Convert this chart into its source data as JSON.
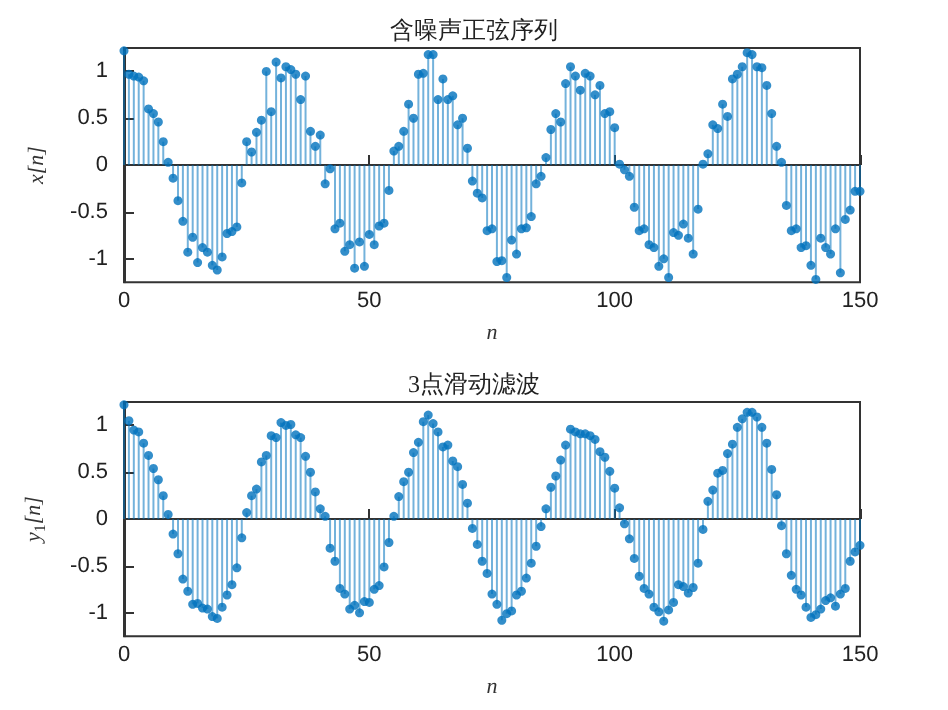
{
  "chart_data": [
    {
      "type": "lollipop",
      "title": "含噪声正弦序列",
      "xlabel": "n",
      "ylabel": "x[n]",
      "x": [
        0,
        1,
        2,
        3,
        4,
        5,
        6,
        7,
        8,
        9,
        10,
        11,
        12,
        13,
        14,
        15,
        16,
        17,
        18,
        19,
        20,
        21,
        22,
        23,
        24,
        25,
        26,
        27,
        28,
        29,
        30,
        31,
        32,
        33,
        34,
        35,
        36,
        37,
        38,
        39,
        40,
        41,
        42,
        43,
        44,
        45,
        46,
        47,
        48,
        49,
        50,
        51,
        52,
        53,
        54,
        55,
        56,
        57,
        58,
        59,
        60,
        61,
        62,
        63,
        64,
        65,
        66,
        67,
        68,
        69,
        70,
        71,
        72,
        73,
        74,
        75,
        76,
        77,
        78,
        79,
        80,
        81,
        82,
        83,
        84,
        85,
        86,
        87,
        88,
        89,
        90,
        91,
        92,
        93,
        94,
        95,
        96,
        97,
        98,
        99,
        100,
        101,
        102,
        103,
        104,
        105,
        106,
        107,
        108,
        109,
        110,
        111,
        112,
        113,
        114,
        115,
        116,
        117,
        118,
        119,
        120,
        121,
        122,
        123,
        124,
        125,
        126,
        127,
        128,
        129,
        130,
        131,
        132,
        133,
        134,
        135,
        136,
        137,
        138,
        139,
        140,
        141,
        142,
        143,
        144,
        145,
        146,
        147,
        148,
        149,
        150
      ],
      "series": [
        {
          "color": "#0072bd",
          "values": [
            1.22,
            0.97,
            0.95,
            0.94,
            0.9,
            0.6,
            0.55,
            0.46,
            0.25,
            0.03,
            -0.14,
            -0.38,
            -0.6,
            -0.93,
            -0.77,
            -1.04,
            -0.88,
            -0.93,
            -1.07,
            -1.12,
            -0.98,
            -0.73,
            -0.71,
            -0.66,
            -0.19,
            0.25,
            0.14,
            0.35,
            0.48,
            1.0,
            0.57,
            1.1,
            0.93,
            1.05,
            1.02,
            0.97,
            0.7,
            0.95,
            0.36,
            0.2,
            0.32,
            -0.2,
            -0.04,
            -0.68,
            -0.62,
            -0.92,
            -0.85,
            -1.1,
            -0.82,
            -1.08,
            -0.74,
            -0.85,
            -0.65,
            -0.62,
            -0.27,
            0.15,
            0.2,
            0.36,
            0.65,
            0.5,
            0.97,
            0.98,
            1.18,
            1.18,
            0.7,
            0.92,
            0.7,
            0.74,
            0.43,
            0.5,
            0.18,
            -0.17,
            -0.3,
            -0.35,
            -0.7,
            -0.68,
            -1.03,
            -1.02,
            -1.2,
            -0.8,
            -0.95,
            -0.68,
            -0.67,
            -0.55,
            -0.2,
            -0.12,
            0.08,
            0.38,
            0.55,
            0.46,
            0.87,
            1.05,
            0.95,
            0.8,
            0.98,
            0.95,
            0.75,
            0.85,
            0.55,
            0.57,
            0.4,
            0.01,
            -0.05,
            -0.12,
            -0.45,
            -0.7,
            -0.68,
            -0.85,
            -0.88,
            -1.08,
            -1.0,
            -1.2,
            -0.72,
            -0.75,
            -0.63,
            -0.78,
            -0.95,
            -0.47,
            0.01,
            0.12,
            0.43,
            0.39,
            0.65,
            0.52,
            0.92,
            0.97,
            1.05,
            1.2,
            1.18,
            1.05,
            1.04,
            0.85,
            0.55,
            0.2,
            0.03,
            -0.43,
            -0.7,
            -0.68,
            -0.88,
            -0.86,
            -1.07,
            -1.22,
            -0.78,
            -0.88,
            -0.95,
            -0.68,
            -1.15,
            -0.58,
            -0.48,
            -0.28,
            -0.28
          ]
        }
      ],
      "xlim": [
        0,
        150
      ],
      "xticks": [
        0,
        50,
        100,
        150
      ],
      "ylim": [
        -1.25,
        1.25
      ],
      "yticks": [
        -1,
        -0.5,
        0,
        0.5,
        1
      ],
      "marker": "circle"
    },
    {
      "type": "lollipop",
      "title": "3点滑动滤波",
      "xlabel": "n",
      "ylabel": "y$_{1}$[n]",
      "x": [
        0,
        1,
        2,
        3,
        4,
        5,
        6,
        7,
        8,
        9,
        10,
        11,
        12,
        13,
        14,
        15,
        16,
        17,
        18,
        19,
        20,
        21,
        22,
        23,
        24,
        25,
        26,
        27,
        28,
        29,
        30,
        31,
        32,
        33,
        34,
        35,
        36,
        37,
        38,
        39,
        40,
        41,
        42,
        43,
        44,
        45,
        46,
        47,
        48,
        49,
        50,
        51,
        52,
        53,
        54,
        55,
        56,
        57,
        58,
        59,
        60,
        61,
        62,
        63,
        64,
        65,
        66,
        67,
        68,
        69,
        70,
        71,
        72,
        73,
        74,
        75,
        76,
        77,
        78,
        79,
        80,
        81,
        82,
        83,
        84,
        85,
        86,
        87,
        88,
        89,
        90,
        91,
        92,
        93,
        94,
        95,
        96,
        97,
        98,
        99,
        100,
        101,
        102,
        103,
        104,
        105,
        106,
        107,
        108,
        109,
        110,
        111,
        112,
        113,
        114,
        115,
        116,
        117,
        118,
        119,
        120,
        121,
        122,
        123,
        124,
        125,
        126,
        127,
        128,
        129,
        130,
        131,
        132,
        133,
        134,
        135,
        136,
        137,
        138,
        139,
        140,
        141,
        142,
        143,
        144,
        145,
        146,
        147,
        148,
        149,
        150
      ],
      "series": [
        {
          "color": "#0072bd",
          "values": [
            1.22,
            1.05,
            0.95,
            0.93,
            0.81,
            0.68,
            0.54,
            0.42,
            0.25,
            0.05,
            -0.16,
            -0.37,
            -0.64,
            -0.77,
            -0.91,
            -0.9,
            -0.95,
            -0.96,
            -1.04,
            -1.06,
            -0.94,
            -0.81,
            -0.7,
            -0.52,
            -0.2,
            0.07,
            0.25,
            0.32,
            0.61,
            0.68,
            0.89,
            0.87,
            1.03,
            1.0,
            1.01,
            0.9,
            0.87,
            0.67,
            0.5,
            0.29,
            0.11,
            0.03,
            -0.31,
            -0.45,
            -0.74,
            -0.8,
            -0.96,
            -0.92,
            -1.0,
            -0.88,
            -0.89,
            -0.75,
            -0.71,
            -0.51,
            -0.25,
            0.03,
            0.24,
            0.4,
            0.5,
            0.71,
            0.82,
            1.04,
            1.11,
            1.02,
            0.93,
            0.77,
            0.79,
            0.62,
            0.56,
            0.37,
            0.17,
            -0.1,
            -0.27,
            -0.45,
            -0.58,
            -0.8,
            -0.91,
            -1.08,
            -1.01,
            -0.98,
            -0.81,
            -0.77,
            -0.63,
            -0.47,
            -0.29,
            -0.08,
            0.11,
            0.34,
            0.46,
            0.63,
            0.79,
            0.96,
            0.93,
            0.91,
            0.91,
            0.89,
            0.85,
            0.72,
            0.66,
            0.51,
            0.33,
            0.12,
            -0.05,
            -0.21,
            -0.42,
            -0.61,
            -0.74,
            -0.8,
            -0.94,
            -0.99,
            -1.09,
            -0.97,
            -0.89,
            -0.7,
            -0.72,
            -0.79,
            -0.73,
            -0.47,
            -0.11,
            0.19,
            0.31,
            0.49,
            0.52,
            0.7,
            0.8,
            0.98,
            1.07,
            1.14,
            1.14,
            1.09,
            0.98,
            0.81,
            0.53,
            0.26,
            -0.07,
            -0.37,
            -0.6,
            -0.75,
            -0.81,
            -0.94,
            -1.05,
            -1.02,
            -0.96,
            -0.87,
            -0.84,
            -0.93,
            -0.8,
            -0.74,
            -0.45,
            -0.35,
            -0.28
          ]
        }
      ],
      "xlim": [
        0,
        150
      ],
      "xticks": [
        0,
        50,
        100,
        150
      ],
      "ylim": [
        -1.25,
        1.25
      ],
      "yticks": [
        -1,
        -0.5,
        0,
        0.5,
        1
      ],
      "marker": "circle"
    }
  ]
}
